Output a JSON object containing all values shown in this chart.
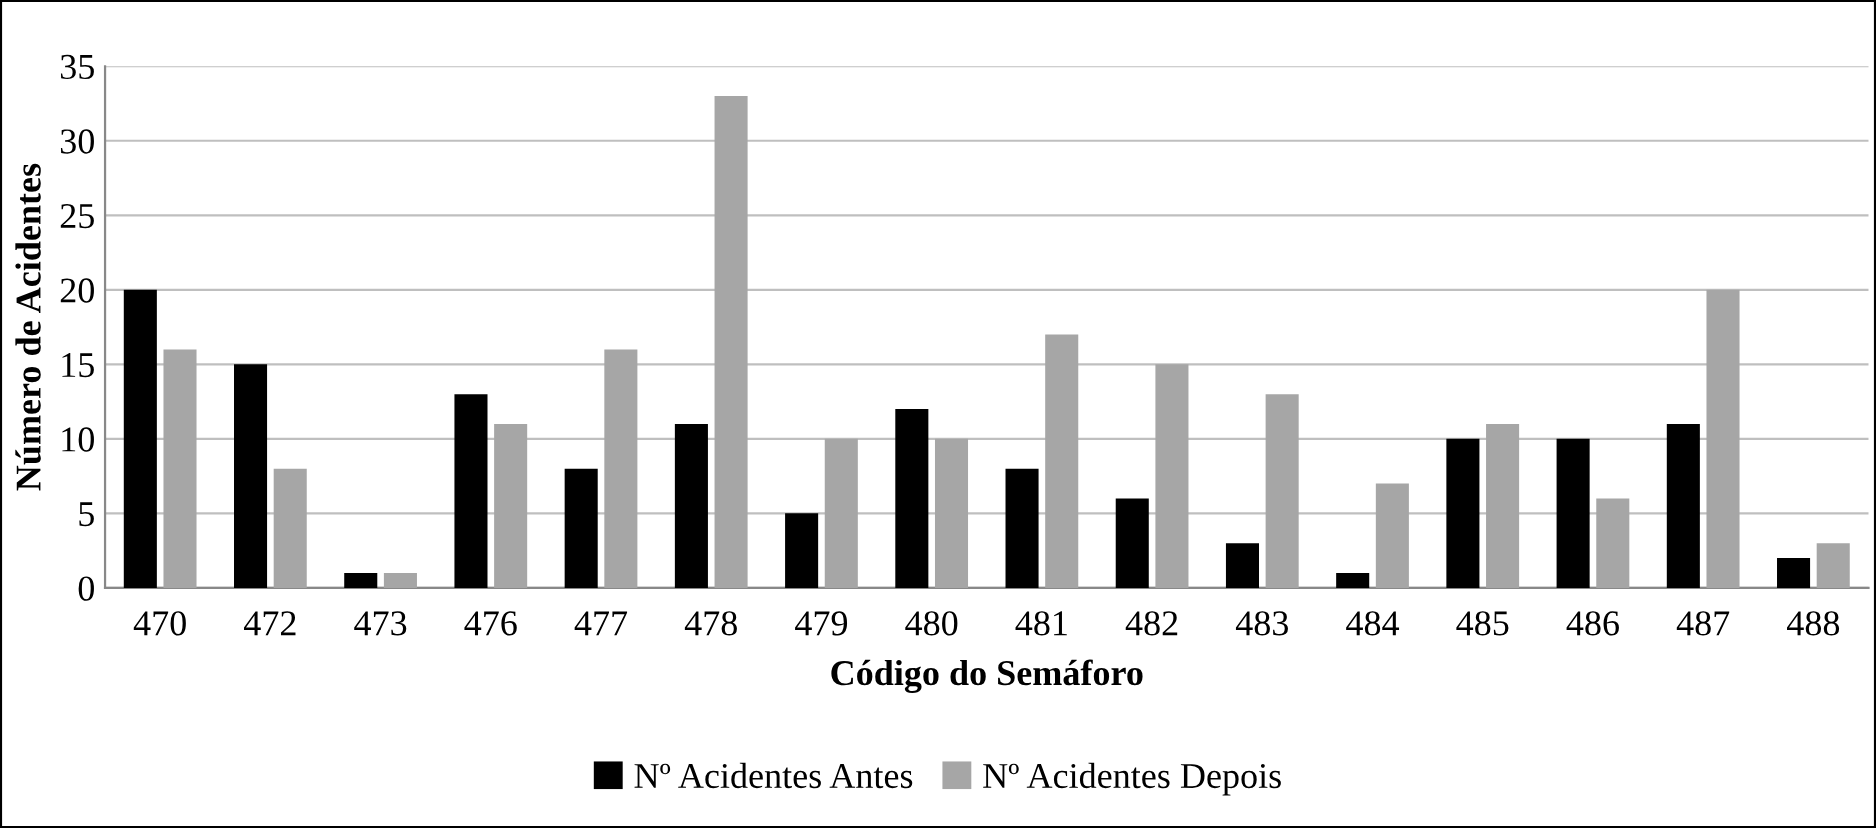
{
  "chart_data": {
    "type": "bar",
    "xlabel": "Código do Semáforo",
    "ylabel": "Número de Acidentes",
    "categories": [
      "470",
      "472",
      "473",
      "476",
      "477",
      "478",
      "479",
      "480",
      "481",
      "482",
      "483",
      "484",
      "485",
      "486",
      "487",
      "488"
    ],
    "series": [
      {
        "name": "Nº Acidentes Antes",
        "color": "#000000",
        "values": [
          20,
          15,
          1,
          13,
          8,
          11,
          5,
          12,
          8,
          6,
          3,
          1,
          10,
          10,
          11,
          2
        ]
      },
      {
        "name": "Nº Acidentes Depois",
        "color": "#a6a6a6",
        "values": [
          16,
          8,
          1,
          11,
          16,
          33,
          10,
          10,
          17,
          15,
          13,
          7,
          11,
          6,
          20,
          3
        ]
      }
    ],
    "ylim": [
      0,
      35
    ],
    "yticks": [
      0,
      5,
      10,
      15,
      20,
      25,
      30,
      35
    ],
    "grid": "y",
    "legend": "bottom"
  }
}
